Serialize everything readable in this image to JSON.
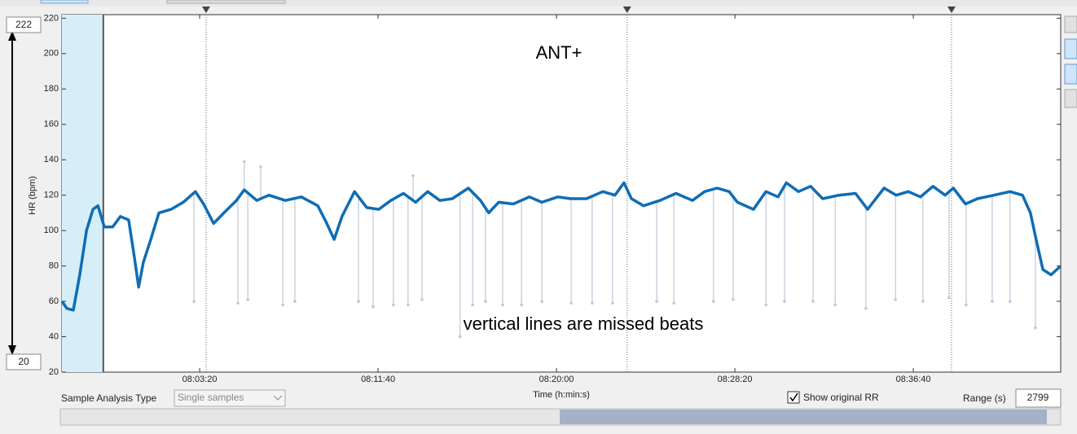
{
  "chart_data": {
    "type": "line",
    "y_label": "HR (bpm)",
    "x_label": "Time (h:min:s)",
    "annotations": [
      "ANT+",
      "vertical lines are missed beats"
    ],
    "xlim": [
      28614,
      31413
    ],
    "ylim": [
      20,
      222
    ],
    "xticks": [
      {
        "value": 29000,
        "label": "08:03:20"
      },
      {
        "value": 29500,
        "label": "08:11:40"
      },
      {
        "value": 30000,
        "label": "08:20:00"
      },
      {
        "value": 30500,
        "label": "08:28:20"
      },
      {
        "value": 31000,
        "label": "08:36:40"
      }
    ],
    "yticks": [
      20,
      40,
      60,
      80,
      100,
      120,
      140,
      160,
      180,
      200,
      220
    ],
    "selection": [
      28614,
      28730
    ],
    "markers": [
      29018,
      30198,
      31107
    ],
    "x": [
      28614,
      28628,
      28646,
      28664,
      28683,
      28701,
      28715,
      28733,
      28756,
      28778,
      28801,
      28817,
      28829,
      28842,
      28863,
      28886,
      28920,
      28954,
      28988,
      29011,
      29039,
      29068,
      29103,
      29125,
      29160,
      29194,
      29240,
      29285,
      29331,
      29354,
      29377,
      29399,
      29434,
      29468,
      29502,
      29536,
      29571,
      29605,
      29639,
      29673,
      29708,
      29753,
      29787,
      29810,
      29838,
      29879,
      29924,
      29959,
      30004,
      30039,
      30084,
      30130,
      30164,
      30189,
      30210,
      30244,
      30290,
      30335,
      30381,
      30415,
      30450,
      30484,
      30507,
      30552,
      30587,
      30621,
      30644,
      30678,
      30712,
      30746,
      30792,
      30838,
      30872,
      30918,
      30952,
      30986,
      31020,
      31055,
      31089,
      31112,
      31146,
      31180,
      31226,
      31271,
      31306,
      31328,
      31344,
      31363,
      31386,
      31413
    ],
    "series": [
      {
        "color": "#0f6db5",
        "values": [
          60,
          56,
          55,
          75,
          100,
          112,
          114,
          102,
          102,
          108,
          106,
          85,
          68,
          82,
          95,
          110,
          112,
          116,
          122,
          115,
          104,
          110,
          117,
          123,
          117,
          120,
          117,
          119,
          114,
          105,
          95,
          108,
          122,
          113,
          112,
          117,
          121,
          116,
          122,
          117,
          118,
          124,
          117,
          110,
          116,
          115,
          119,
          116,
          119,
          118,
          118,
          122,
          120,
          127,
          118,
          114,
          117,
          121,
          117,
          122,
          124,
          122,
          116,
          112,
          122,
          119,
          127,
          122,
          125,
          118,
          120,
          121,
          112,
          124,
          120,
          122,
          119,
          125,
          120,
          124,
          115,
          118,
          120,
          122,
          120,
          110,
          95,
          78,
          75,
          80
        ]
      }
    ],
    "missed_beats": {
      "color": "#c3c6d8",
      "x": [
        28984,
        29107,
        29135,
        29233,
        29267,
        29445,
        29486,
        29543,
        29584,
        29623,
        29730,
        29765,
        29801,
        29849,
        29902,
        29959,
        30041,
        30100,
        30157,
        30281,
        30329,
        30440,
        30495,
        30587,
        30639,
        30719,
        30781,
        30867,
        30950,
        31027,
        31100,
        31148,
        31221,
        31271,
        31342,
        29125,
        29171,
        29598
      ],
      "values": [
        60,
        59,
        61,
        58,
        60,
        60,
        57,
        58,
        58,
        61,
        40,
        58,
        60,
        58,
        58,
        60,
        59,
        59,
        59,
        60,
        59,
        60,
        61,
        58,
        60,
        60,
        58,
        56,
        61,
        60,
        62,
        58,
        60,
        60,
        45,
        139,
        136,
        131
      ]
    }
  },
  "ui": {
    "analysis_type_label": "Sample Analysis Type",
    "analysis_type_value": "Single samples",
    "show_rr_label": "Show original RR",
    "range_label": "Range (s)",
    "range_value": 2799
  }
}
